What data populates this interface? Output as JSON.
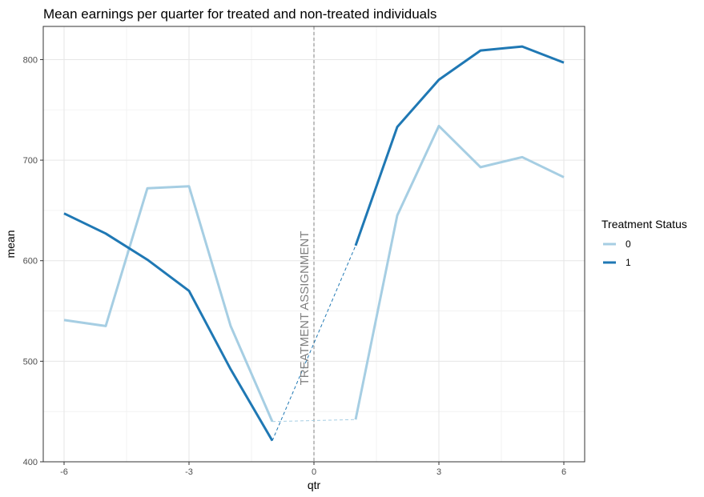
{
  "chart_data": {
    "type": "line",
    "title": "Mean earnings per quarter for treated and non-treated individuals",
    "xlabel": "qtr",
    "ylabel": "mean",
    "xlim": [
      -6.5,
      6.5
    ],
    "ylim": [
      400,
      833
    ],
    "x_ticks": [
      -6,
      -3,
      0,
      3,
      6
    ],
    "y_ticks": [
      400,
      500,
      600,
      700,
      800
    ],
    "grid": true,
    "legend": {
      "title": "Treatment Status",
      "position": "right"
    },
    "annotation": {
      "text": "TREATMENT ASSIGNMENT",
      "x": 0
    },
    "series": [
      {
        "name": "0",
        "color": "#a6cee3",
        "pre": {
          "x": [
            -6,
            -5,
            -4,
            -3,
            -2,
            -1
          ],
          "y": [
            541,
            535,
            672,
            674,
            535,
            440
          ]
        },
        "gap": {
          "x": [
            -1,
            1
          ],
          "y": [
            440,
            442
          ]
        },
        "post": {
          "x": [
            1,
            2,
            3,
            4,
            5,
            6
          ],
          "y": [
            442,
            645,
            734,
            693,
            703,
            683
          ]
        }
      },
      {
        "name": "1",
        "color": "#1f78b4",
        "pre": {
          "x": [
            -6,
            -5,
            -4,
            -3,
            -2,
            -1
          ],
          "y": [
            647,
            627,
            601,
            570,
            492,
            421
          ]
        },
        "gap": {
          "x": [
            -1,
            1
          ],
          "y": [
            421,
            615
          ]
        },
        "post": {
          "x": [
            1,
            2,
            3,
            4,
            5,
            6
          ],
          "y": [
            615,
            733,
            780,
            809,
            813,
            797
          ]
        }
      }
    ]
  }
}
